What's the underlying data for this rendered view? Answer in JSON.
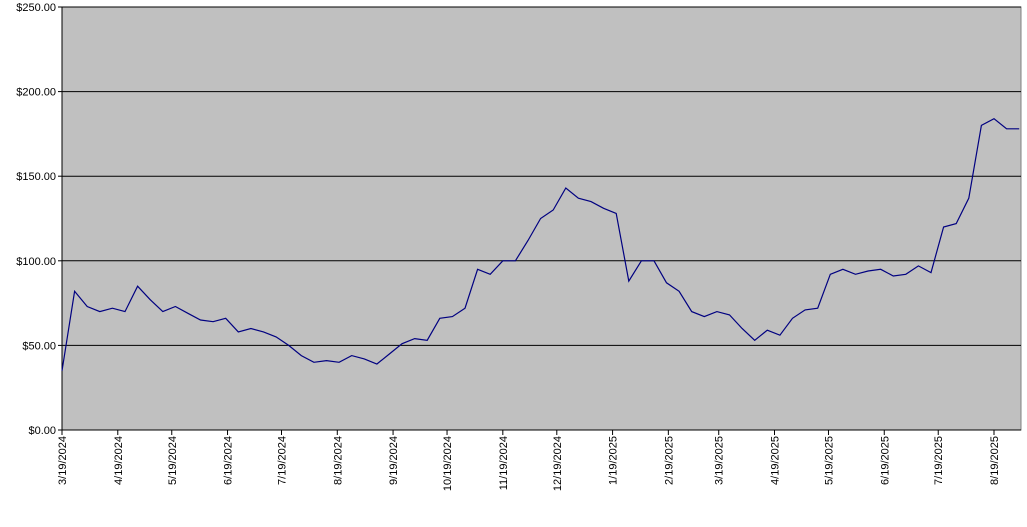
{
  "chart_data": {
    "type": "line",
    "x": [
      "2024-03-19",
      "2024-03-26",
      "2024-04-02",
      "2024-04-09",
      "2024-04-16",
      "2024-04-23",
      "2024-04-30",
      "2024-05-07",
      "2024-05-14",
      "2024-05-21",
      "2024-05-28",
      "2024-06-04",
      "2024-06-11",
      "2024-06-18",
      "2024-06-25",
      "2024-07-02",
      "2024-07-09",
      "2024-07-16",
      "2024-07-23",
      "2024-07-30",
      "2024-08-06",
      "2024-08-13",
      "2024-08-20",
      "2024-08-27",
      "2024-09-03",
      "2024-09-10",
      "2024-09-17",
      "2024-09-24",
      "2024-10-01",
      "2024-10-08",
      "2024-10-15",
      "2024-10-22",
      "2024-10-29",
      "2024-11-05",
      "2024-11-12",
      "2024-11-19",
      "2024-11-26",
      "2024-12-03",
      "2024-12-10",
      "2024-12-17",
      "2024-12-24",
      "2024-12-31",
      "2025-01-07",
      "2025-01-14",
      "2025-01-21",
      "2025-01-28",
      "2025-02-04",
      "2025-02-11",
      "2025-02-18",
      "2025-02-25",
      "2025-03-04",
      "2025-03-11",
      "2025-03-18",
      "2025-03-25",
      "2025-04-01",
      "2025-04-08",
      "2025-04-15",
      "2025-04-22",
      "2025-04-29",
      "2025-05-06",
      "2025-05-13",
      "2025-05-20",
      "2025-05-27",
      "2025-06-03",
      "2025-06-10",
      "2025-06-17",
      "2025-06-24",
      "2025-07-01",
      "2025-07-08",
      "2025-07-15",
      "2025-07-22",
      "2025-07-29",
      "2025-08-05",
      "2025-08-12",
      "2025-08-19",
      "2025-08-26",
      "2025-09-02"
    ],
    "series": [
      {
        "color": "#000080",
        "values": [
          35,
          82,
          73,
          70,
          72,
          70,
          85,
          77,
          70,
          73,
          69,
          65,
          64,
          66,
          58,
          60,
          58,
          55,
          50,
          44,
          40,
          41,
          40,
          44,
          42,
          39,
          45,
          51,
          54,
          53,
          66,
          67,
          72,
          95,
          92,
          100,
          100,
          112,
          125,
          130,
          143,
          137,
          135,
          131,
          128,
          88,
          100,
          100,
          87,
          82,
          70,
          67,
          70,
          68,
          60,
          53,
          59,
          56,
          66,
          71,
          72,
          92,
          95,
          92,
          94,
          95,
          91,
          92,
          97,
          93,
          120,
          122,
          137,
          180,
          184,
          178,
          178
        ]
      }
    ],
    "xlim": [
      "2024-03-19",
      "2025-09-03"
    ],
    "xticks": [
      {
        "value": "2024-03-19",
        "label": "3/19/2024"
      },
      {
        "value": "2024-04-19",
        "label": "4/19/2024"
      },
      {
        "value": "2024-05-19",
        "label": "5/19/2024"
      },
      {
        "value": "2024-06-19",
        "label": "6/19/2024"
      },
      {
        "value": "2024-07-19",
        "label": "7/19/2024"
      },
      {
        "value": "2024-08-19",
        "label": "8/19/2024"
      },
      {
        "value": "2024-09-19",
        "label": "9/19/2024"
      },
      {
        "value": "2024-10-19",
        "label": "10/19/2024"
      },
      {
        "value": "2024-11-19",
        "label": "11/19/2024"
      },
      {
        "value": "2024-12-19",
        "label": "12/19/2024"
      },
      {
        "value": "2025-01-19",
        "label": "1/19/2025"
      },
      {
        "value": "2025-02-19",
        "label": "2/19/2025"
      },
      {
        "value": "2025-03-19",
        "label": "3/19/2025"
      },
      {
        "value": "2025-04-19",
        "label": "4/19/2025"
      },
      {
        "value": "2025-05-19",
        "label": "5/19/2025"
      },
      {
        "value": "2025-06-19",
        "label": "6/19/2025"
      },
      {
        "value": "2025-07-19",
        "label": "7/19/2025"
      },
      {
        "value": "2025-08-19",
        "label": "8/19/2025"
      }
    ],
    "ylim": [
      0,
      250
    ],
    "yticks": [
      {
        "value": 0,
        "label": "$0.00"
      },
      {
        "value": 50,
        "label": "$50.00"
      },
      {
        "value": 100,
        "label": "$100.00"
      },
      {
        "value": 150,
        "label": "$150.00"
      },
      {
        "value": 200,
        "label": "$200.00"
      },
      {
        "value": 250,
        "label": "$250.00"
      }
    ],
    "grid": true,
    "background": "#c0c0c0"
  }
}
